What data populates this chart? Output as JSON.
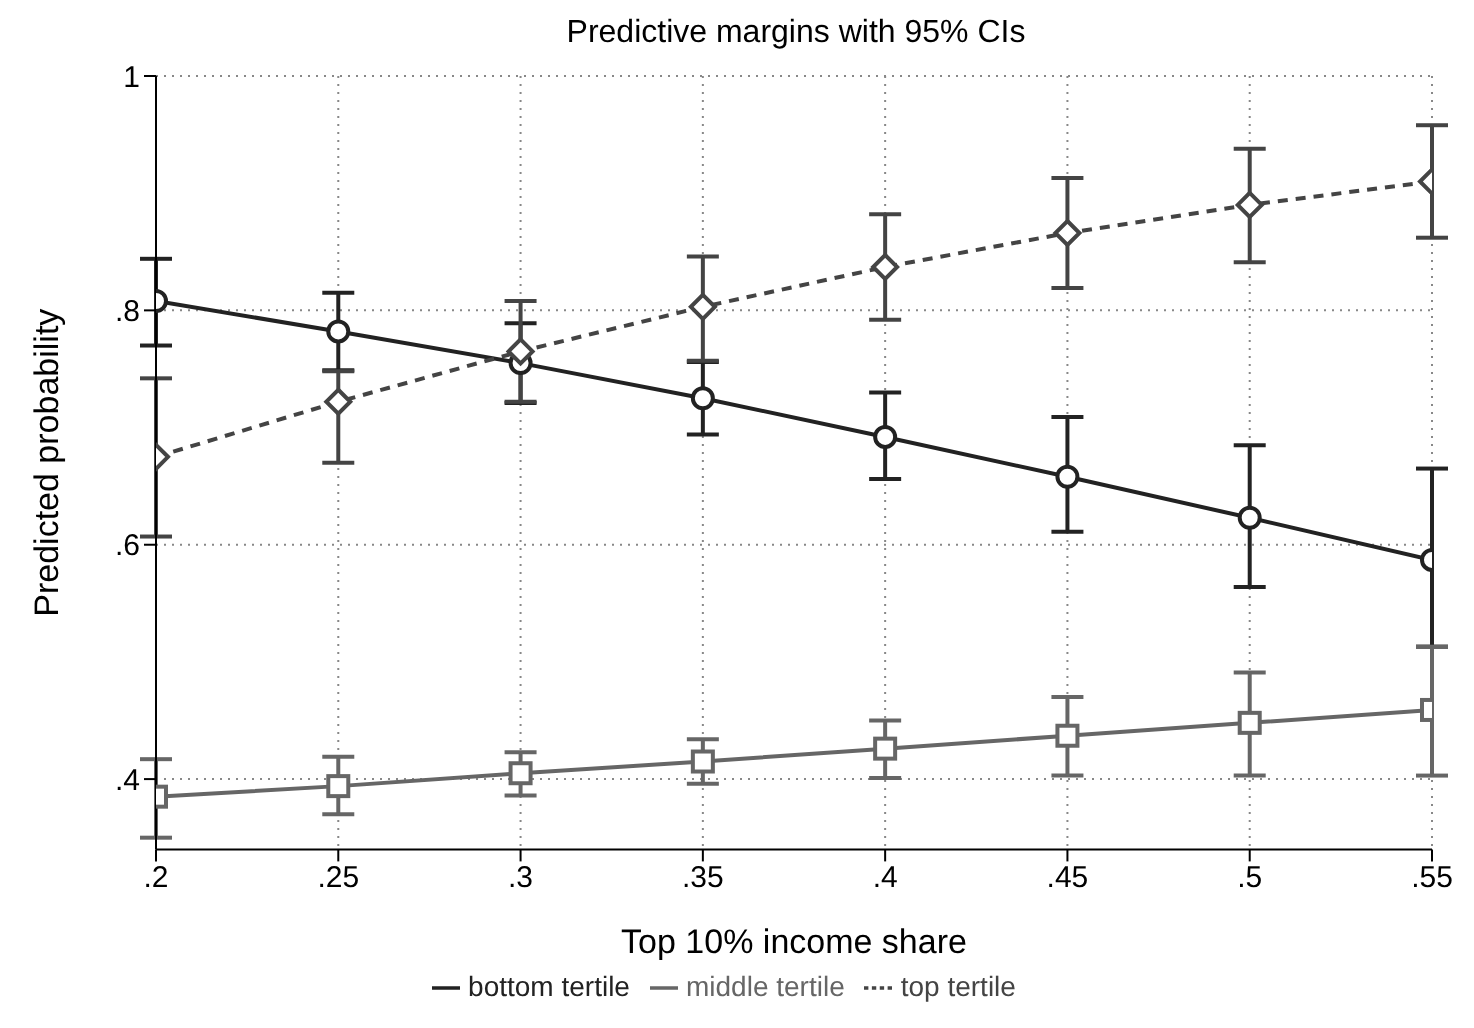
{
  "chart_data": {
    "type": "line",
    "title": "Predictive margins with 95% CIs",
    "xlabel": "Top 10% income share",
    "ylabel": "Predicted probability",
    "x": [
      0.2,
      0.25,
      0.3,
      0.35,
      0.4,
      0.45,
      0.5,
      0.55
    ],
    "series": [
      {
        "name": "bottom tertile",
        "color": "#222222",
        "marker": "circle",
        "line_style": "solid",
        "values": [
          0.808,
          0.782,
          0.755,
          0.725,
          0.692,
          0.658,
          0.623,
          0.587
        ],
        "errors": [
          [
            0.77,
            0.844
          ],
          [
            0.749,
            0.815
          ],
          [
            0.721,
            0.789
          ],
          [
            0.694,
            0.756
          ],
          [
            0.656,
            0.73
          ],
          [
            0.611,
            0.709
          ],
          [
            0.564,
            0.685
          ],
          [
            0.513,
            0.665
          ]
        ]
      },
      {
        "name": "middle tertile",
        "color": "#666666",
        "marker": "square",
        "line_style": "solid",
        "values": [
          0.385,
          0.394,
          0.405,
          0.415,
          0.426,
          0.437,
          0.448,
          0.459
        ],
        "errors": [
          [
            0.35,
            0.417
          ],
          [
            0.37,
            0.419
          ],
          [
            0.386,
            0.423
          ],
          [
            0.396,
            0.434
          ],
          [
            0.401,
            0.45
          ],
          [
            0.403,
            0.47
          ],
          [
            0.403,
            0.491
          ],
          [
            0.403,
            0.513
          ]
        ]
      },
      {
        "name": "top tertile",
        "color": "#444444",
        "marker": "diamond",
        "line_style": "dashed",
        "values": [
          0.675,
          0.722,
          0.765,
          0.803,
          0.837,
          0.866,
          0.89,
          0.91
        ],
        "errors": [
          [
            0.607,
            0.742
          ],
          [
            0.67,
            0.748
          ],
          [
            0.722,
            0.808
          ],
          [
            0.757,
            0.846
          ],
          [
            0.792,
            0.882
          ],
          [
            0.819,
            0.913
          ],
          [
            0.841,
            0.938
          ],
          [
            0.862,
            0.958
          ]
        ]
      }
    ],
    "xlim": [
      0.2,
      0.55
    ],
    "xticks": [
      {
        "value": 0.2,
        "label": ".2"
      },
      {
        "value": 0.25,
        "label": ".25"
      },
      {
        "value": 0.3,
        "label": ".3"
      },
      {
        "value": 0.35,
        "label": ".35"
      },
      {
        "value": 0.4,
        "label": ".4"
      },
      {
        "value": 0.45,
        "label": ".45"
      },
      {
        "value": 0.5,
        "label": ".5"
      },
      {
        "value": 0.55,
        "label": ".55"
      }
    ],
    "ylim": [
      0.34,
      1
    ],
    "yticks": [
      {
        "value": 0.4,
        "label": ".4"
      },
      {
        "value": 0.6,
        "label": ".6"
      },
      {
        "value": 0.8,
        "label": ".8"
      },
      1
    ],
    "grid": true,
    "legend": "bottom"
  }
}
